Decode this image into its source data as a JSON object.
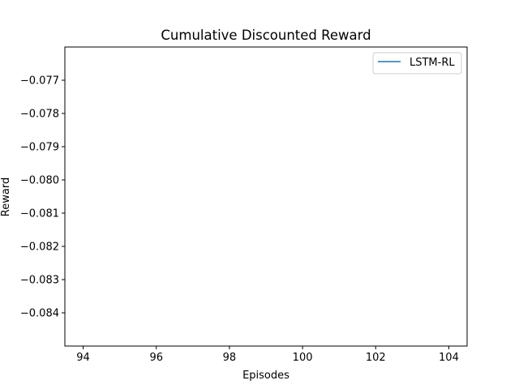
{
  "chart_data": {
    "type": "line",
    "title": "Cumulative Discounted Reward",
    "xlabel": "Episodes",
    "ylabel": "Reward",
    "xlim": [
      93.5,
      104.5
    ],
    "ylim": [
      -0.085,
      -0.076
    ],
    "xticks": [
      94,
      96,
      98,
      100,
      102,
      104
    ],
    "xtick_labels": [
      "94",
      "96",
      "98",
      "100",
      "102",
      "104"
    ],
    "yticks": [
      -0.077,
      -0.078,
      -0.079,
      -0.08,
      -0.081,
      -0.082,
      -0.083,
      -0.084
    ],
    "ytick_labels": [
      "−0.077",
      "−0.078",
      "−0.079",
      "−0.080",
      "−0.081",
      "−0.082",
      "−0.083",
      "−0.084"
    ],
    "grid": false,
    "legend_position": "top-right",
    "series": [
      {
        "name": "LSTM-RL",
        "color": "#1f77b4",
        "x": [],
        "y": []
      }
    ]
  }
}
